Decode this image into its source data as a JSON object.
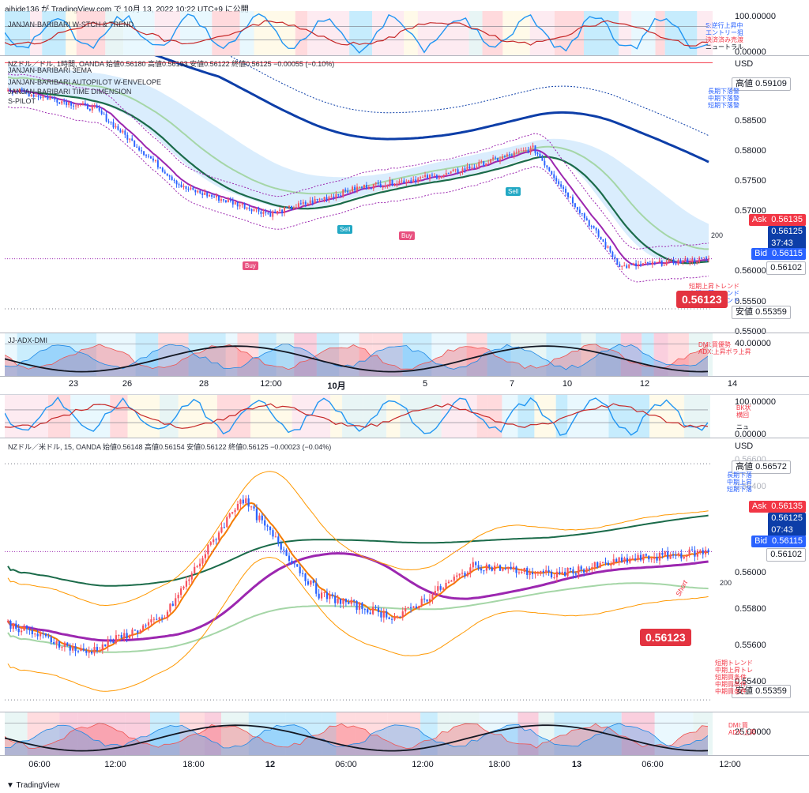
{
  "header": "aihide136 が TradingView.com で 10月 13, 2022 10:22 UTC+9 に公開",
  "footer": "TradingView",
  "colors": {
    "bid": "#2962ff",
    "ask": "#f23645",
    "up": "#f7525f",
    "down": "#2962ff",
    "ema_green": "#1b6b4a",
    "ema_blue": "#0d3ea8",
    "purple": "#9c27b0",
    "orange": "#ff9800"
  },
  "top_chart": {
    "osc_legend": "JANJAN-BARIBARI W-STCH & TREND",
    "osc_ticks": [
      "100.00000",
      "0.00000"
    ],
    "osc_notes": [
      "S:逆行上昇中",
      "エントリー狙",
      "決済済み売渡",
      "ニュートラル"
    ],
    "legend_lines": [
      "NZドル／ドル, 1時間, OANDA 始値0.56180 高値0.56193 安値0.56122 終値0.56125 −0.00055 (−0.10%)",
      "JANJAN-BARIBARI 3EMA",
      "JANJAN-BARIBARI AUTOPILOT W-ENVELOPE",
      "JANJAN-BARIBARI TIME DIMENSION",
      "S-PILOT"
    ],
    "currency": "USD",
    "price_ticks": [
      "0.59109",
      "0.58500",
      "0.58000",
      "0.57500",
      "0.57000",
      "0.56500",
      "0.56000",
      "0.55500",
      "0.55000"
    ],
    "high_label": "高値",
    "high_value": "0.59109",
    "low_label": "安値",
    "low_value": "0.55359",
    "ask_label": "Ask",
    "ask_value": "0.56135",
    "price_value": "0.56125",
    "countdown": "37:43",
    "bid_label": "Bid",
    "bid_value": "0.56115",
    "close_value": "0.56102",
    "big_price": "0.56123",
    "trend_notes": [
      "長期下落警",
      "中期下落警",
      "短期下落警"
    ],
    "trend_notes_low": [
      "短期上昇トレンド",
      "中期下落トレンド",
      "長期下落トレンド"
    ],
    "ma200_label": "200",
    "signals": [
      "Buy",
      "Buy",
      "Sell",
      "Sell",
      "Sell"
    ],
    "adx_legend": "JJ-ADX-DMI",
    "adx_tick": "40.00000",
    "adx_notes": [
      "DMI:買優勢",
      "ADX:上昇ボラ上昇"
    ],
    "xaxis": [
      "23",
      "26",
      "28",
      "12:00",
      "10月",
      "5",
      "7",
      "10",
      "12",
      "14"
    ]
  },
  "bottom_chart": {
    "osc_ticks": [
      "100.00000",
      "0.00000"
    ],
    "osc_notes": [
      "BK状",
      "横回",
      "ニュ"
    ],
    "legend_line": "NZドル／米ドル, 15, OANDA 始値0.56148 高値0.56154 安値0.56122 終値0.56125 −0.00023 (−0.04%)",
    "currency": "USD",
    "price_ticks": [
      "0.56600",
      "0.56400",
      "0.56200",
      "0.56000",
      "0.55800",
      "0.55600",
      "0.55400"
    ],
    "high_label": "高値",
    "high_value": "0.56572",
    "low_label": "安値",
    "low_value": "0.55359",
    "ask_label": "Ask",
    "ask_value": "0.56135",
    "price_value": "0.56125",
    "countdown": "07:43",
    "bid_label": "Bid",
    "bid_value": "0.56115",
    "close_value": "0.56102",
    "big_price": "0.56123",
    "trend_notes": [
      "長期下落",
      "中期上昇",
      "短期下落"
    ],
    "trend_notes_low": [
      "短期トレンド",
      "中期上昇トレ",
      "短期買条件",
      "中期買条件",
      "中期買条件"
    ],
    "ma200_label": "200",
    "short_label": "Short",
    "adx_tick": "25.00000",
    "adx_notes": [
      "DMI:買",
      "ADX:上昇"
    ],
    "xaxis": [
      "06:00",
      "12:00",
      "18:00",
      "12",
      "06:00",
      "12:00",
      "18:00",
      "13",
      "06:00",
      "12:00"
    ]
  },
  "chart_data": [
    {
      "type": "line",
      "title": "NZドル／ドル, 1時間, OANDA",
      "x": [
        "23",
        "26",
        "28",
        "12:00",
        "10月",
        "5",
        "7",
        "10",
        "12"
      ],
      "series": [
        {
          "name": "NZドル／ドル",
          "values": [
            0.587,
            0.584,
            0.572,
            0.568,
            0.572,
            0.574,
            0.578,
            0.56,
            0.5612
          ]
        }
      ],
      "ylim": [
        0.55,
        0.592
      ]
    },
    {
      "type": "line",
      "title": "NZドル／米ドル, 15, OANDA",
      "x": [
        "06:00",
        "12:00",
        "18:00",
        "12",
        "06:00",
        "12:00",
        "18:00",
        "13",
        "06:00",
        "12:00"
      ],
      "series": [
        {
          "name": "NZドル／米ドル",
          "values": [
            0.5575,
            0.556,
            0.5578,
            0.564,
            0.559,
            0.5578,
            0.5605,
            0.56,
            0.5608,
            0.5612
          ]
        }
      ],
      "ylim": [
        0.553,
        0.567
      ]
    }
  ]
}
